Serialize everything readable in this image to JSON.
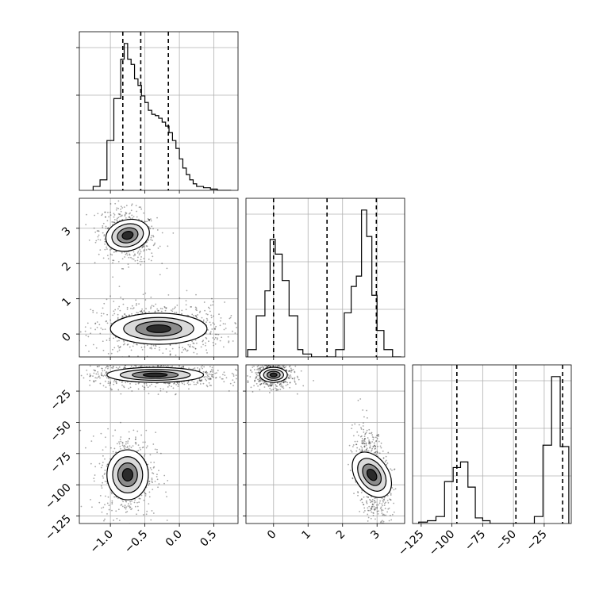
{
  "figure": {
    "type": "corner-plot"
  },
  "chart_data": {
    "type": "corner",
    "grid": true,
    "quantile_line_style": "dashed",
    "params": [
      {
        "index": 0,
        "xlim": [
          -1.45,
          0.85
        ],
        "ticks": [
          -1.0,
          -0.5,
          0.0,
          0.5
        ],
        "tick_labels": [
          "−1.0",
          "−0.5",
          "0.0",
          "0.5"
        ],
        "quantiles": [
          -0.82,
          -0.56,
          -0.16
        ],
        "hist_edges": [
          -1.25,
          -1.15,
          -1.05,
          -0.95,
          -0.85,
          -0.8,
          -0.75,
          -0.7,
          -0.65,
          -0.6,
          -0.55,
          -0.5,
          -0.45,
          -0.4,
          -0.35,
          -0.3,
          -0.25,
          -0.2,
          -0.15,
          -0.1,
          -0.05,
          0.0,
          0.05,
          0.1,
          0.15,
          0.2,
          0.25,
          0.35,
          0.45,
          0.55,
          0.65,
          0.75
        ],
        "hist_counts": [
          0.03,
          0.08,
          0.38,
          0.7,
          1.0,
          1.12,
          1.0,
          0.96,
          0.85,
          0.8,
          0.72,
          0.67,
          0.61,
          0.58,
          0.57,
          0.55,
          0.52,
          0.49,
          0.44,
          0.38,
          0.32,
          0.24,
          0.17,
          0.12,
          0.08,
          0.05,
          0.03,
          0.02,
          0.01,
          0.0,
          0.0
        ]
      },
      {
        "index": 1,
        "xlim": [
          -0.8,
          3.8
        ],
        "ticks": [
          0,
          1,
          2,
          3
        ],
        "tick_labels": [
          "0",
          "1",
          "2",
          "3"
        ],
        "quantiles": [
          0.0,
          1.55,
          2.98
        ],
        "hist_edges": [
          -0.75,
          -0.5,
          -0.25,
          -0.1,
          0.05,
          0.25,
          0.45,
          0.7,
          0.85,
          1.1,
          1.3,
          1.55,
          1.8,
          2.05,
          2.25,
          2.4,
          2.55,
          2.7,
          2.85,
          3.0,
          3.2,
          3.45,
          3.7
        ],
        "hist_counts": [
          0.05,
          0.28,
          0.45,
          0.8,
          0.7,
          0.52,
          0.28,
          0.05,
          0.02,
          0.0,
          0.0,
          0.0,
          0.05,
          0.3,
          0.48,
          0.55,
          1.0,
          0.82,
          0.42,
          0.18,
          0.05,
          0.0
        ]
      },
      {
        "index": 2,
        "xlim": [
          -132,
          -3
        ],
        "ticks": [
          -125,
          -100,
          -75,
          -50,
          -25
        ],
        "tick_labels": [
          "−125",
          "−100",
          "−75",
          "−50",
          "−25"
        ],
        "quantiles": [
          -96,
          -48,
          -10
        ],
        "hist_edges": [
          -127,
          -120,
          -113,
          -106,
          -99,
          -93,
          -87,
          -81,
          -75,
          -69,
          -63,
          -57,
          -51,
          -45,
          -39,
          -33,
          -26,
          -19,
          -12,
          -5
        ],
        "hist_counts": [
          0.01,
          0.02,
          0.05,
          0.3,
          0.4,
          0.44,
          0.26,
          0.04,
          0.02,
          0.0,
          0.0,
          0.0,
          0.0,
          0.0,
          0.0,
          0.05,
          0.56,
          1.05,
          0.55
        ]
      }
    ],
    "panels_2d": [
      {
        "row": 1,
        "col": 0,
        "ylim": [
          -0.65,
          3.85
        ],
        "yticks": [
          0,
          1,
          2,
          3
        ],
        "ytick_labels": [
          "0",
          "1",
          "2",
          "3"
        ],
        "clusters": [
          {
            "cx": -0.75,
            "cy": 2.8,
            "sx": 0.16,
            "sy": 0.22,
            "weight": 0.4,
            "rot": -0.25
          },
          {
            "cx": -0.3,
            "cy": 0.15,
            "sx": 0.35,
            "sy": 0.22,
            "weight": 0.6,
            "rot": 0.0
          }
        ]
      },
      {
        "row": 2,
        "col": 0,
        "ylim": [
          -131,
          -4
        ],
        "yticks": [
          -125,
          -100,
          -75,
          -50,
          -25
        ],
        "ytick_labels": [
          "−125",
          "−100",
          "−75",
          "−50",
          "−25"
        ],
        "clusters": [
          {
            "cx": -0.75,
            "cy": -92,
            "sx": 0.15,
            "sy": 10,
            "weight": 0.4,
            "rot": 0.0
          },
          {
            "cx": -0.35,
            "cy": -12,
            "sx": 0.35,
            "sy": 3,
            "weight": 0.6,
            "rot": 0.0
          }
        ]
      },
      {
        "row": 2,
        "col": 1,
        "ylim": [
          -131,
          -4
        ],
        "clusters": [
          {
            "cx": 0.0,
            "cy": -12,
            "sx": 0.2,
            "sy": 3,
            "weight": 0.5,
            "rot": 0.0
          },
          {
            "cx": 2.85,
            "cy": -92,
            "sx": 0.24,
            "sy": 10,
            "weight": 0.5,
            "rot": -0.6
          }
        ]
      }
    ]
  }
}
